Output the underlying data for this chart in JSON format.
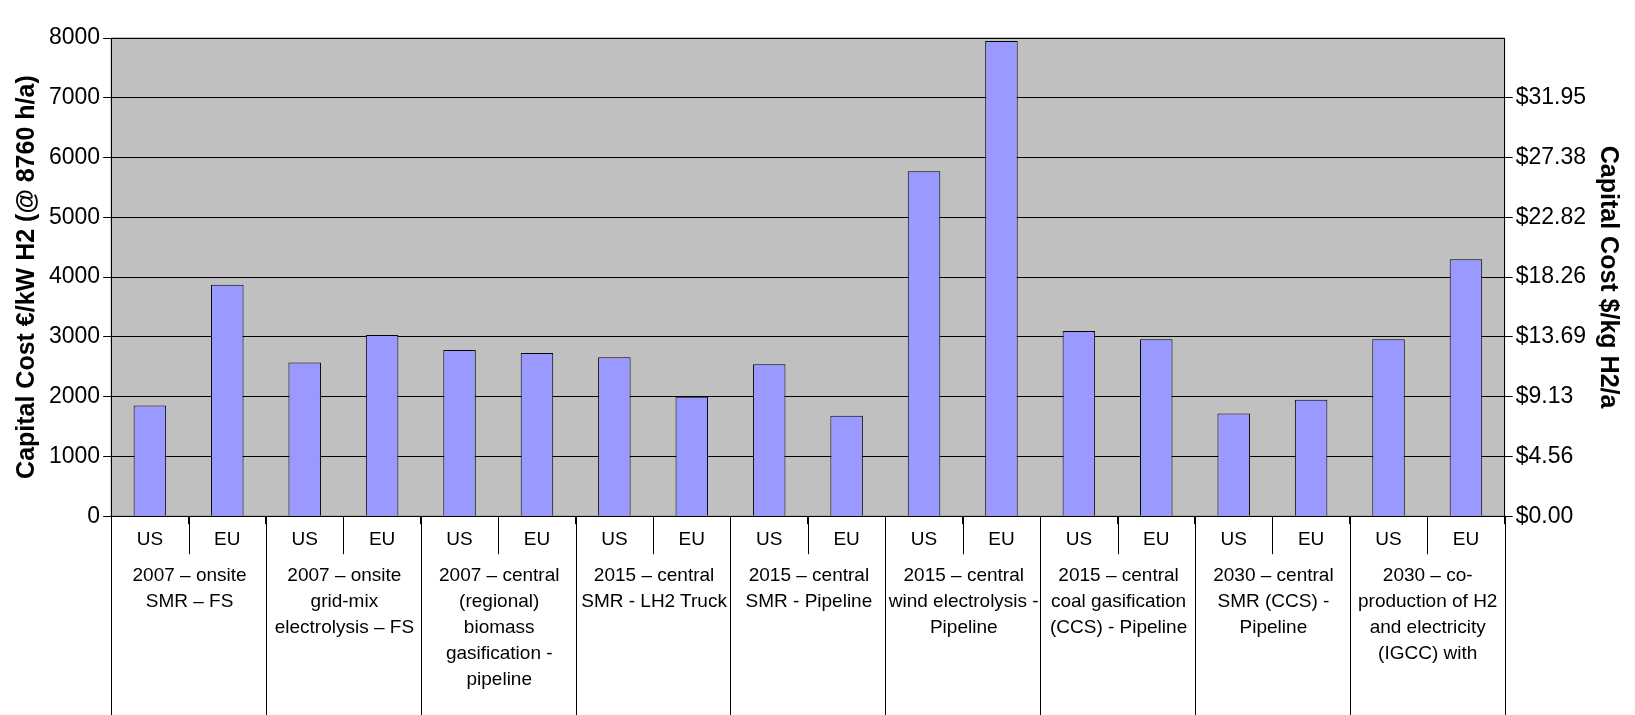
{
  "chart_data": {
    "type": "bar",
    "ylabel": "Capital Cost €/kW H2 (@ 8760 h/a)",
    "y2label": "Capital Cost $/kg H2/a",
    "categories": [
      "US",
      "EU",
      "US",
      "EU",
      "US",
      "EU",
      "US",
      "EU",
      "US",
      "EU",
      "US",
      "EU",
      "US",
      "EU",
      "US",
      "EU",
      "US",
      "EU"
    ],
    "series": [
      {
        "color": "#9999ff",
        "values": [
          1850,
          3870,
          2570,
          3030,
          2780,
          2730,
          2660,
          2000,
          2540,
          1680,
          5770,
          7950,
          3100,
          2960,
          1720,
          1950,
          2960,
          4300
        ]
      }
    ],
    "ylim": [
      0,
      8000
    ],
    "yticks": [
      0,
      1000,
      2000,
      3000,
      4000,
      5000,
      6000,
      7000,
      8000
    ],
    "y2lim": [
      0,
      36.51
    ],
    "y2ticks": [
      {
        "value": 0,
        "label": "$0.00"
      },
      {
        "value": 4.56,
        "label": "$4.56"
      },
      {
        "value": 9.13,
        "label": "$9.13"
      },
      {
        "value": 13.69,
        "label": "$13.69"
      },
      {
        "value": 18.26,
        "label": "$18.26"
      },
      {
        "value": 22.82,
        "label": "$22.82"
      },
      {
        "value": 27.38,
        "label": "$27.38"
      },
      {
        "value": 31.95,
        "label": "$31.95"
      }
    ],
    "grid": "y",
    "annotations": [
      "2007 – onsite SMR – FS",
      "2007 – onsite grid-mix electrolysis – FS",
      "2007 – central (regional) biomass gasification - pipeline",
      "2015 – central SMR - LH2 Truck",
      "2015 – central SMR - Pipeline",
      "2015 – central wind electrolysis - Pipeline",
      "2015 – central coal gasification (CCS) - Pipeline",
      "2030 – central SMR (CCS) - Pipeline",
      "2030 – co-production of H2 and electricity (IGCC) with"
    ]
  }
}
